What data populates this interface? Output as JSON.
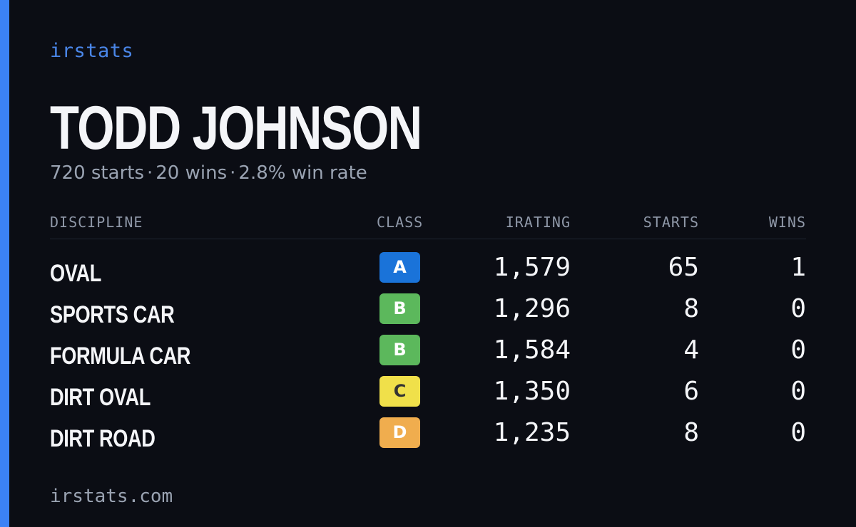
{
  "brand": "irstats",
  "player": {
    "name": "TODD JOHNSON",
    "starts": "720 starts",
    "wins": "20 wins",
    "win_rate": "2.8% win rate",
    "separator": "·"
  },
  "table": {
    "headers": {
      "discipline": "DISCIPLINE",
      "class": "CLASS",
      "irating": "IRATING",
      "starts": "STARTS",
      "wins": "WINS"
    },
    "rows": [
      {
        "discipline": "OVAL",
        "class": "A",
        "class_color": "#1a73d9",
        "class_text_color": "#ffffff",
        "irating": "1,579",
        "starts": "65",
        "wins": "1"
      },
      {
        "discipline": "SPORTS CAR",
        "class": "B",
        "class_color": "#5cb85c",
        "class_text_color": "#ffffff",
        "irating": "1,296",
        "starts": "8",
        "wins": "0"
      },
      {
        "discipline": "FORMULA CAR",
        "class": "B",
        "class_color": "#5cb85c",
        "class_text_color": "#ffffff",
        "irating": "1,584",
        "starts": "4",
        "wins": "0"
      },
      {
        "discipline": "DIRT OVAL",
        "class": "C",
        "class_color": "#f0e04a",
        "class_text_color": "#333333",
        "irating": "1,350",
        "starts": "6",
        "wins": "0"
      },
      {
        "discipline": "DIRT ROAD",
        "class": "D",
        "class_color": "#f0ad4e",
        "class_text_color": "#ffffff",
        "irating": "1,235",
        "starts": "8",
        "wins": "0"
      }
    ]
  },
  "footer": {
    "url": "irstats.com"
  },
  "colors": {
    "background": "#0b0d14",
    "accent": "#3b82f6"
  }
}
